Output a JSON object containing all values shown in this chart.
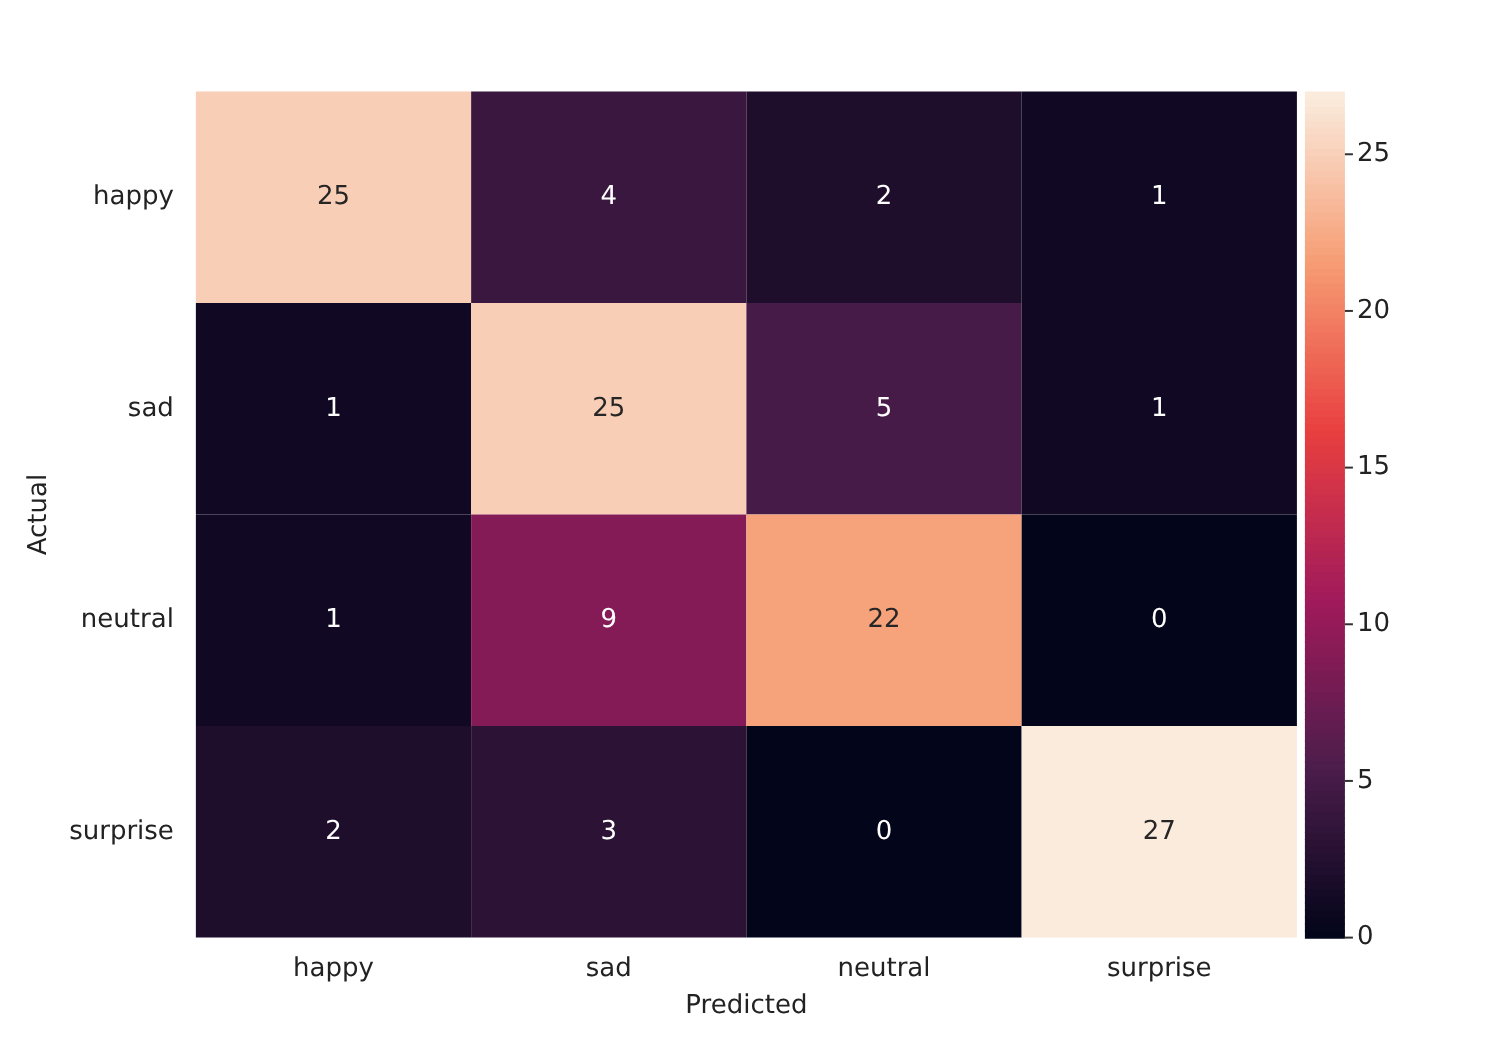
{
  "chart_data": {
    "type": "heatmap",
    "xlabel": "Predicted",
    "ylabel": "Actual",
    "categories": [
      "happy",
      "sad",
      "neutral",
      "surprise"
    ],
    "y_categories": [
      "happy",
      "sad",
      "neutral",
      "surprise"
    ],
    "cells": [
      [
        25,
        4,
        2,
        1
      ],
      [
        1,
        25,
        5,
        1
      ],
      [
        1,
        9,
        22,
        0
      ],
      [
        2,
        3,
        0,
        27
      ]
    ],
    "data_labels": true,
    "clim": [
      0,
      27
    ],
    "cticks": [
      0,
      5,
      10,
      15,
      20,
      25
    ]
  }
}
